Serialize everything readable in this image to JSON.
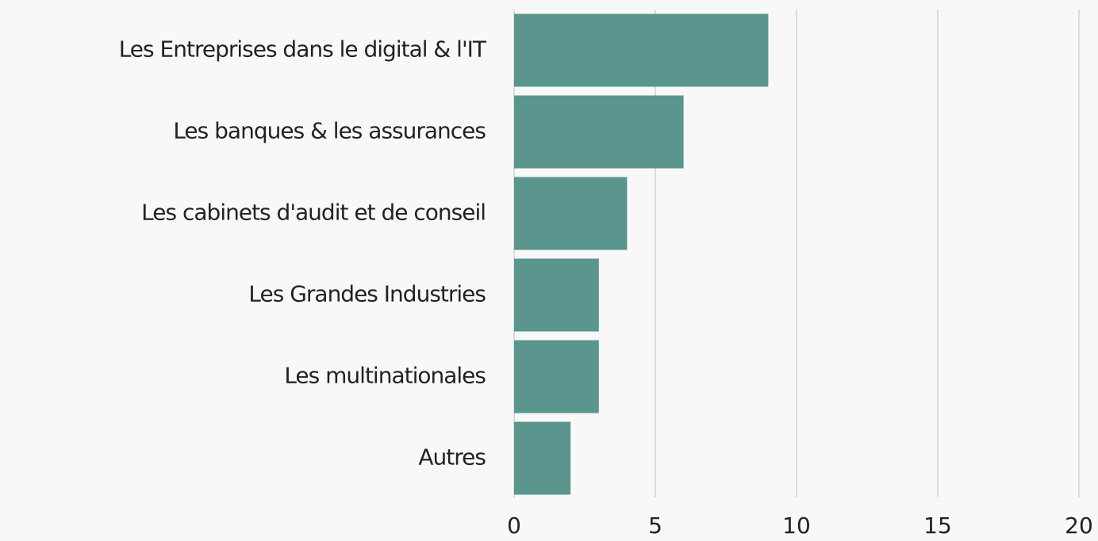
{
  "chart_data": {
    "type": "bar",
    "orientation": "horizontal",
    "categories": [
      "Les Entreprises dans le digital & l'IT",
      "Les banques & les assurances",
      "Les cabinets d'audit et de conseil",
      "Les Grandes Industries",
      "Les multinationales",
      "Autres"
    ],
    "values": [
      9,
      6,
      4,
      3,
      3,
      2
    ],
    "color": "#5a958e",
    "xlim": [
      0,
      20
    ],
    "xticks": [
      0,
      5,
      10,
      15,
      20
    ],
    "grid": true
  }
}
